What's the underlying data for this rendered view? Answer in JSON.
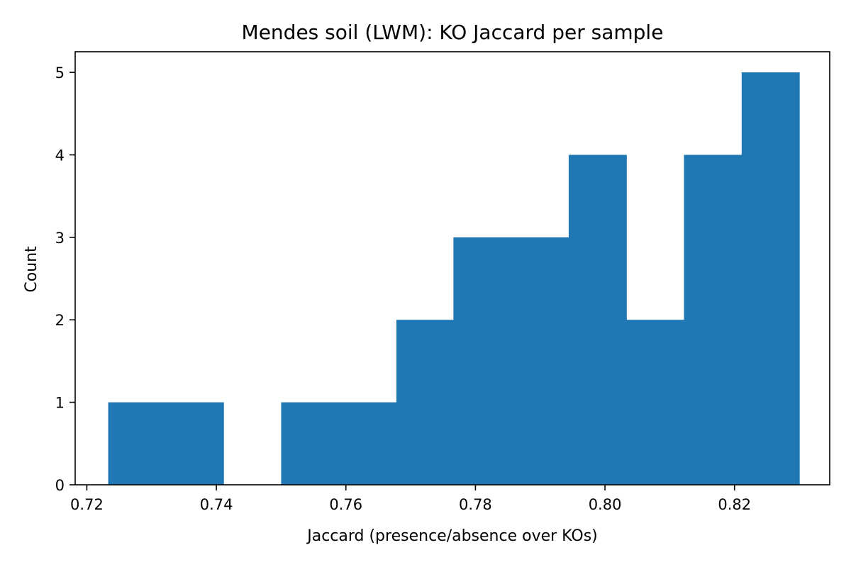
{
  "chart_data": {
    "type": "bar",
    "title": "Mendes soil (LWM): KO Jaccard per sample",
    "xlabel": "Jaccard (presence/absence over KOs)",
    "ylabel": "Count",
    "xlim": [
      0.7182,
      0.8347
    ],
    "ylim": [
      0,
      5.25
    ],
    "xticks": [
      0.72,
      0.74,
      0.76,
      0.78,
      0.8,
      0.82
    ],
    "xtick_labels": [
      "0.72",
      "0.74",
      "0.76",
      "0.78",
      "0.80",
      "0.82"
    ],
    "yticks": [
      0,
      1,
      2,
      3,
      4,
      5
    ],
    "ytick_labels": [
      "0",
      "1",
      "2",
      "3",
      "4",
      "5"
    ],
    "bin_edges": [
      0.7233,
      0.7322,
      0.7411,
      0.75,
      0.7589,
      0.7678,
      0.7766,
      0.7855,
      0.7944,
      0.8033,
      0.8122,
      0.8211,
      0.83
    ],
    "values": [
      1,
      1,
      0,
      1,
      1,
      2,
      3,
      3,
      4,
      2,
      4,
      5
    ],
    "bar_color": "#1f77b4",
    "grid": false,
    "legend": "none"
  }
}
